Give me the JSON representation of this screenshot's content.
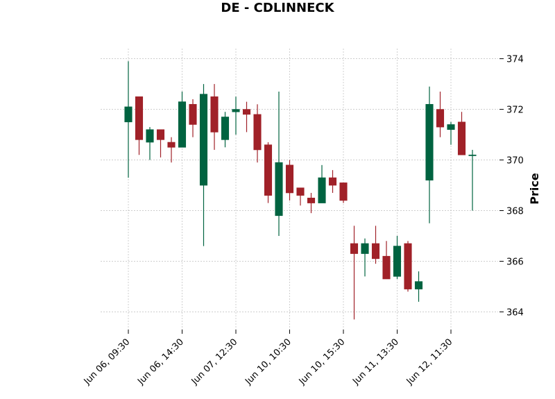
{
  "chart_data": {
    "type": "candlestick",
    "title": "DE - CDLINNECK",
    "ylabel": "Price",
    "ylim": [
      363.3,
      374.4
    ],
    "yticks": [
      364,
      366,
      368,
      370,
      372,
      374
    ],
    "grid": true,
    "colors": {
      "up": "#006340",
      "down": "#a02128"
    },
    "xtick_labels": [
      {
        "index": 0,
        "label": "Jun 06, 09:30"
      },
      {
        "index": 5,
        "label": "Jun 06, 14:30"
      },
      {
        "index": 10,
        "label": "Jun 07, 12:30"
      },
      {
        "index": 15,
        "label": "Jun 10, 10:30"
      },
      {
        "index": 20,
        "label": "Jun 10, 15:30"
      },
      {
        "index": 25,
        "label": "Jun 11, 13:30"
      },
      {
        "index": 30,
        "label": "Jun 12, 11:30"
      }
    ],
    "candles": [
      {
        "open": 371.5,
        "high": 373.9,
        "low": 369.3,
        "close": 372.1
      },
      {
        "open": 372.5,
        "high": 372.5,
        "low": 370.2,
        "close": 370.8
      },
      {
        "open": 370.7,
        "high": 371.3,
        "low": 370.0,
        "close": 371.2
      },
      {
        "open": 371.2,
        "high": 371.2,
        "low": 370.1,
        "close": 370.8
      },
      {
        "open": 370.7,
        "high": 370.9,
        "low": 369.9,
        "close": 370.5
      },
      {
        "open": 370.5,
        "high": 372.7,
        "low": 370.5,
        "close": 372.3
      },
      {
        "open": 372.2,
        "high": 372.4,
        "low": 370.9,
        "close": 371.4
      },
      {
        "open": 369.0,
        "high": 373.0,
        "low": 366.6,
        "close": 372.6
      },
      {
        "open": 372.5,
        "high": 373.0,
        "low": 370.4,
        "close": 371.1
      },
      {
        "open": 370.8,
        "high": 371.9,
        "low": 370.5,
        "close": 371.7
      },
      {
        "open": 371.9,
        "high": 372.5,
        "low": 371.0,
        "close": 372.0
      },
      {
        "open": 372.0,
        "high": 372.3,
        "low": 371.1,
        "close": 371.8
      },
      {
        "open": 371.8,
        "high": 372.2,
        "low": 369.9,
        "close": 370.4
      },
      {
        "open": 370.6,
        "high": 370.7,
        "low": 368.3,
        "close": 368.6
      },
      {
        "open": 367.8,
        "high": 372.7,
        "low": 367.0,
        "close": 369.9
      },
      {
        "open": 369.8,
        "high": 370.0,
        "low": 368.4,
        "close": 368.7
      },
      {
        "open": 368.9,
        "high": 368.9,
        "low": 368.2,
        "close": 368.6
      },
      {
        "open": 368.5,
        "high": 368.7,
        "low": 367.9,
        "close": 368.3
      },
      {
        "open": 368.3,
        "high": 369.8,
        "low": 368.3,
        "close": 369.3
      },
      {
        "open": 369.3,
        "high": 369.6,
        "low": 368.7,
        "close": 369.0
      },
      {
        "open": 369.1,
        "high": 369.1,
        "low": 368.3,
        "close": 368.4
      },
      {
        "open": 366.7,
        "high": 367.4,
        "low": 363.7,
        "close": 366.3
      },
      {
        "open": 366.3,
        "high": 366.9,
        "low": 365.4,
        "close": 366.7
      },
      {
        "open": 366.7,
        "high": 367.4,
        "low": 365.9,
        "close": 366.1
      },
      {
        "open": 366.2,
        "high": 366.8,
        "low": 365.3,
        "close": 365.3
      },
      {
        "open": 365.4,
        "high": 367.0,
        "low": 365.3,
        "close": 366.6
      },
      {
        "open": 366.7,
        "high": 366.8,
        "low": 364.8,
        "close": 364.9
      },
      {
        "open": 364.9,
        "high": 365.6,
        "low": 364.4,
        "close": 365.2
      },
      {
        "open": 369.2,
        "high": 372.9,
        "low": 367.5,
        "close": 372.2
      },
      {
        "open": 372.0,
        "high": 372.7,
        "low": 370.9,
        "close": 371.3
      },
      {
        "open": 371.2,
        "high": 371.5,
        "low": 370.6,
        "close": 371.4
      },
      {
        "open": 371.5,
        "high": 371.9,
        "low": 370.2,
        "close": 370.2
      },
      {
        "open": 370.2,
        "high": 370.4,
        "low": 368.0,
        "close": 370.2
      }
    ]
  }
}
